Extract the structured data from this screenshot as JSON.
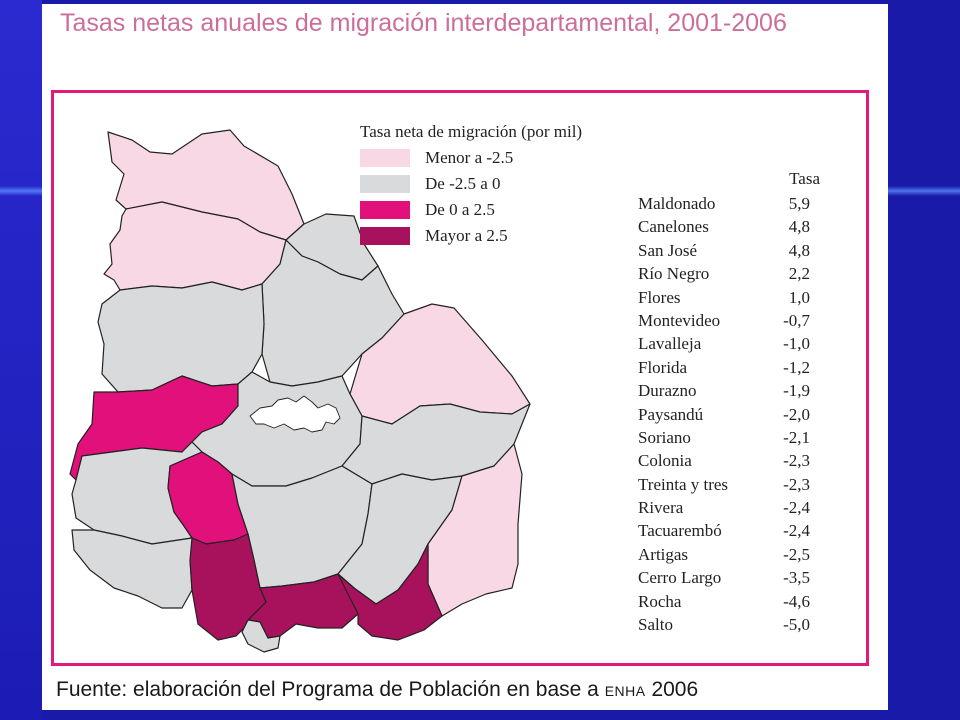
{
  "title": "Tasas netas  anuales de migración interdepartamental, 2001-2006",
  "source": {
    "text": "Fuente: elaboración del Programa de Población en base a ",
    "abbr": "ENHA",
    "year": " 2006"
  },
  "legend": {
    "title": "Tasa neta de migración (por mil)",
    "items": [
      {
        "label": "Menor a -2.5",
        "color": "#f9d8e6"
      },
      {
        "label": "De -2.5 a 0",
        "color": "#d9dadc"
      },
      {
        "label": "De 0 a 2.5",
        "color": "#e2107a"
      },
      {
        "label": "Mayor a 2.5",
        "color": "#a8125c"
      }
    ]
  },
  "table": {
    "header": "Tasa",
    "rows": [
      {
        "name": "Maldonado",
        "value": "5,9"
      },
      {
        "name": "Canelones",
        "value": "4,8"
      },
      {
        "name": "San José",
        "value": "4,8"
      },
      {
        "name": "Río Negro",
        "value": "2,2"
      },
      {
        "name": "Flores",
        "value": "1,0"
      },
      {
        "name": "Montevideo",
        "value": "-0,7"
      },
      {
        "name": "Lavalleja",
        "value": "-1,0"
      },
      {
        "name": "Florida",
        "value": "-1,2"
      },
      {
        "name": "Durazno",
        "value": "-1,9"
      },
      {
        "name": "Paysandú",
        "value": "-2,0"
      },
      {
        "name": "Soriano",
        "value": "-2,1"
      },
      {
        "name": "Colonia",
        "value": "-2,3"
      },
      {
        "name": "Treinta y tres",
        "value": "-2,3"
      },
      {
        "name": "Rivera",
        "value": "-2,4"
      },
      {
        "name": "Tacuarembó",
        "value": "-2,4"
      },
      {
        "name": "Artigas",
        "value": "-2,5"
      },
      {
        "name": "Cerro Largo",
        "value": "-3,5"
      },
      {
        "name": "Rocha",
        "value": "-4,6"
      },
      {
        "name": "Salto",
        "value": "-5,0"
      }
    ]
  },
  "map": {
    "regions": [
      {
        "name": "Artigas",
        "class": "Menor a -2.5"
      },
      {
        "name": "Salto",
        "class": "Menor a -2.5"
      },
      {
        "name": "Paysandú",
        "class": "De -2.5 a 0"
      },
      {
        "name": "Rivera",
        "class": "De -2.5 a 0"
      },
      {
        "name": "Tacuarembó",
        "class": "De -2.5 a 0"
      },
      {
        "name": "Cerro Largo",
        "class": "Menor a -2.5"
      },
      {
        "name": "Río Negro",
        "class": "De 0 a 2.5"
      },
      {
        "name": "Durazno",
        "class": "De -2.5 a 0"
      },
      {
        "name": "Treinta y tres",
        "class": "De -2.5 a 0"
      },
      {
        "name": "Soriano",
        "class": "De -2.5 a 0"
      },
      {
        "name": "Flores",
        "class": "De 0 a 2.5"
      },
      {
        "name": "Florida",
        "class": "De -2.5 a 0"
      },
      {
        "name": "Lavalleja",
        "class": "De -2.5 a 0"
      },
      {
        "name": "Rocha",
        "class": "Menor a -2.5"
      },
      {
        "name": "Colonia",
        "class": "De -2.5 a 0"
      },
      {
        "name": "San José",
        "class": "Mayor a 2.5"
      },
      {
        "name": "Canelones",
        "class": "Mayor a 2.5"
      },
      {
        "name": "Montevideo",
        "class": "De -2.5 a 0"
      },
      {
        "name": "Maldonado",
        "class": "Mayor a 2.5"
      }
    ]
  }
}
